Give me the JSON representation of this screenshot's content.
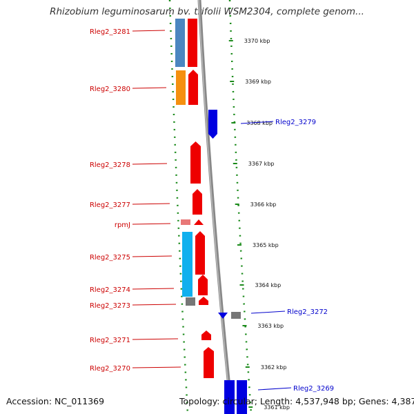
{
  "title": "Rhizobium leguminosarum bv. trifolii WSM2304, complete genom...",
  "footer": {
    "accession": "Accession: NC_011369",
    "topology": "Topology: circular; Length: 4,537,948 bp; Genes: 4,387"
  },
  "colors": {
    "label_red": "#cc0000",
    "label_blue": "#0000cc",
    "ruler_green": "#1a8a1a",
    "backbone": "#888888"
  },
  "kbp_labels": [
    "3370 kbp",
    "3369 kbp",
    "3368 kbp",
    "3367 kbp",
    "3366 kbp",
    "3365 kbp",
    "3364 kbp",
    "3363 kbp",
    "3362 kbp",
    "3361 kbp"
  ],
  "genes_left": [
    {
      "name": "Rleg2_3281"
    },
    {
      "name": "Rleg2_3280"
    },
    {
      "name": "Rleg2_3278"
    },
    {
      "name": "Rleg2_3277"
    },
    {
      "name": "rpmJ"
    },
    {
      "name": "Rleg2_3275"
    },
    {
      "name": "Rleg2_3274"
    },
    {
      "name": "Rleg2_3273"
    },
    {
      "name": "Rleg2_3271"
    },
    {
      "name": "Rleg2_3270"
    }
  ],
  "genes_right": [
    {
      "name": "Rleg2_3279"
    },
    {
      "name": "Rleg2_3272"
    },
    {
      "name": "Rleg2_3269"
    }
  ]
}
